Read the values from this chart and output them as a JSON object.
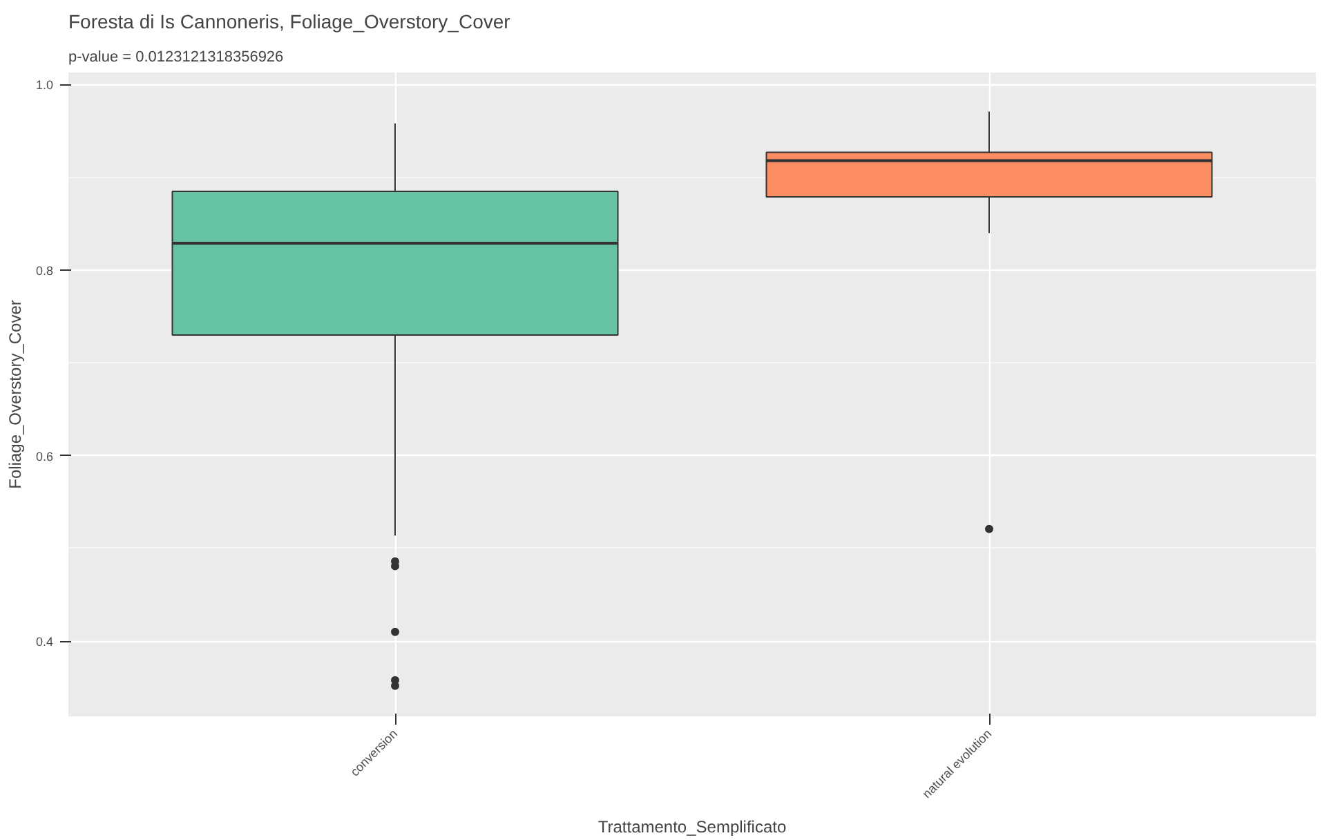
{
  "chart_data": {
    "type": "box",
    "title": "Foresta di Is Cannoneris, Foliage_Overstory_Cover",
    "subtitle": "p-value = 0.0123121318356926",
    "xlabel": "Trattamento_Semplificato",
    "ylabel": "Foliage_Overstory_Cover",
    "categories": [
      "conversion",
      "natural evolution"
    ],
    "colors": [
      "#66c2a5",
      "#fc8d62"
    ],
    "boxes": [
      {
        "low": 0.514,
        "q1": 0.73,
        "median": 0.829,
        "q3": 0.885,
        "high": 0.958,
        "outliers": [
          0.486,
          0.481,
          0.41,
          0.358,
          0.352
        ]
      },
      {
        "low": 0.84,
        "q1": 0.879,
        "median": 0.918,
        "q3": 0.927,
        "high": 0.971,
        "outliers": [
          0.521
        ]
      }
    ],
    "ylim": [
      0.319,
      1.013
    ],
    "yticks": [
      {
        "value": 0.4,
        "label": "0.4"
      },
      {
        "value": 0.6,
        "label": "0.6"
      },
      {
        "value": 0.8,
        "label": "0.8"
      },
      {
        "value": 1.0,
        "label": "1.0"
      }
    ],
    "grid": true
  }
}
